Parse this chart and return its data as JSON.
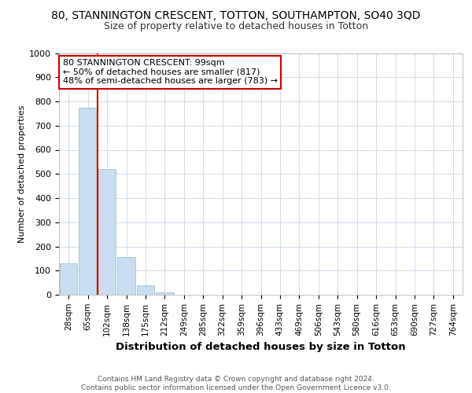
{
  "title": "80, STANNINGTON CRESCENT, TOTTON, SOUTHAMPTON, SO40 3QD",
  "subtitle": "Size of property relative to detached houses in Totton",
  "xlabel": "Distribution of detached houses by size in Totton",
  "ylabel": "Number of detached properties",
  "bar_labels": [
    "28sqm",
    "65sqm",
    "102sqm",
    "138sqm",
    "175sqm",
    "212sqm",
    "249sqm",
    "285sqm",
    "322sqm",
    "359sqm",
    "396sqm",
    "433sqm",
    "469sqm",
    "506sqm",
    "543sqm",
    "580sqm",
    "616sqm",
    "653sqm",
    "690sqm",
    "727sqm",
    "764sqm"
  ],
  "bar_values": [
    130,
    775,
    520,
    155,
    40,
    10,
    0,
    0,
    0,
    0,
    0,
    0,
    0,
    0,
    0,
    0,
    0,
    0,
    0,
    0,
    0
  ],
  "bar_color": "#c8ddef",
  "bar_edge_color": "#9ab8d0",
  "vline_x": 1.5,
  "vline_color": "#cc0000",
  "ylim": [
    0,
    1000
  ],
  "yticks": [
    0,
    100,
    200,
    300,
    400,
    500,
    600,
    700,
    800,
    900,
    1000
  ],
  "annotation_text": "80 STANNINGTON CRESCENT: 99sqm\n← 50% of detached houses are smaller (817)\n48% of semi-detached houses are larger (783) →",
  "annotation_box_color": "#ffffff",
  "annotation_box_edge": "#cc0000",
  "footer": "Contains HM Land Registry data © Crown copyright and database right 2024.\nContains public sector information licensed under the Open Government Licence v3.0.",
  "background_color": "#ffffff",
  "grid_color": "#c8d8e8",
  "title_fontsize": 10,
  "subtitle_fontsize": 9
}
